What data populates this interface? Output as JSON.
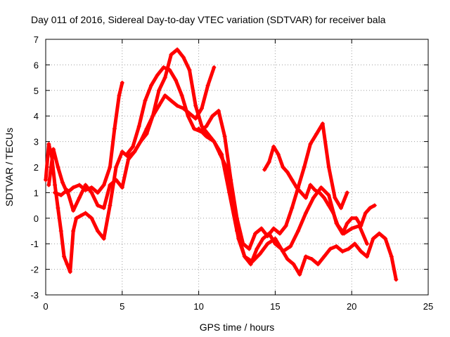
{
  "chart_data": {
    "type": "scatter",
    "title": "Day 011 of 2016, Sidereal Day-to-day VTEC variation (SDTVAR) for receiver bala",
    "xlabel": "GPS time / hours",
    "ylabel": "SDTVAR / TECUs",
    "xlim": [
      0,
      25
    ],
    "ylim": [
      -3,
      7
    ],
    "xticks": [
      0,
      5,
      10,
      15,
      20,
      25
    ],
    "yticks": [
      -3,
      -2,
      -1,
      0,
      1,
      2,
      3,
      4,
      5,
      6,
      7
    ],
    "grid": true,
    "marker": "+",
    "series_color": "#ff0000",
    "series": [
      {
        "x": [
          0.0,
          0.2,
          0.4,
          0.6,
          0.8,
          1.0,
          1.2,
          1.4,
          1.6,
          1.8,
          2.0,
          2.3,
          2.6,
          3.0,
          3.4,
          3.8,
          4.2,
          4.6,
          5.0,
          5.4,
          5.8,
          6.2,
          6.6,
          7.0,
          7.4,
          7.8,
          8.2,
          8.6,
          9.0,
          9.4,
          9.8,
          10.2,
          10.6,
          11.0,
          11.4,
          11.8,
          12.2,
          12.6,
          13.0,
          13.4,
          13.8,
          14.2,
          14.6,
          15.0,
          15.4,
          15.8,
          16.2,
          16.6,
          17.0,
          17.4,
          17.8,
          18.2,
          18.6,
          19.0,
          19.4,
          19.8,
          20.2,
          20.6,
          21.0,
          21.4,
          21.8,
          22.2,
          22.6,
          22.9
        ],
        "y": [
          1.5,
          2.9,
          2.4,
          1.3,
          0.4,
          -0.5,
          -1.5,
          -1.8,
          -2.1,
          -0.5,
          0.0,
          0.1,
          0.2,
          0.0,
          -0.5,
          -0.8,
          0.5,
          2.0,
          2.6,
          2.4,
          2.6,
          3.0,
          3.3,
          4.0,
          5.0,
          5.5,
          6.4,
          6.6,
          6.3,
          5.8,
          4.4,
          3.6,
          3.3,
          3.0,
          2.5,
          2.0,
          0.5,
          -0.8,
          -1.5,
          -1.8,
          -1.2,
          -0.8,
          -0.6,
          -1.0,
          -1.2,
          -1.6,
          -1.8,
          -2.2,
          -1.5,
          -1.6,
          -1.8,
          -1.5,
          -1.2,
          -1.1,
          -1.3,
          -1.2,
          -1.0,
          -1.3,
          -1.5,
          -0.8,
          -0.6,
          -0.8,
          -1.5,
          -2.4
        ]
      },
      {
        "x": [
          0.2,
          0.5,
          0.8,
          1.1,
          1.4,
          1.8,
          2.2,
          2.6,
          3.0,
          3.4,
          3.8,
          4.2,
          4.5,
          4.8,
          5.0
        ],
        "y": [
          1.3,
          2.7,
          2.0,
          1.4,
          1.0,
          1.2,
          1.3,
          1.1,
          1.2,
          1.0,
          1.3,
          2.0,
          3.5,
          4.8,
          5.3
        ]
      },
      {
        "x": [
          0.6,
          1.0,
          1.4,
          1.8,
          2.2,
          2.6,
          3.0,
          3.4,
          3.8,
          4.2,
          4.6,
          5.0,
          5.4,
          5.8,
          6.2,
          6.6,
          7.0,
          7.4,
          7.8,
          8.2,
          8.6,
          9.0,
          9.4,
          9.8,
          10.2,
          10.6,
          11.0
        ],
        "y": [
          1.0,
          0.9,
          1.1,
          0.3,
          0.8,
          1.3,
          1.0,
          0.5,
          0.4,
          1.3,
          1.5,
          1.2,
          2.3,
          2.6,
          3.0,
          3.5,
          4.0,
          4.4,
          4.8,
          4.6,
          4.4,
          4.3,
          4.1,
          3.9,
          4.3,
          5.2,
          5.9
        ]
      },
      {
        "x": [
          5.3,
          5.7,
          6.1,
          6.5,
          6.9,
          7.3,
          7.7,
          8.1,
          8.5,
          8.9,
          9.3,
          9.7,
          10.1,
          10.5,
          10.9,
          11.3,
          11.7,
          12.1,
          12.5,
          12.9,
          13.3,
          13.7,
          14.1,
          14.5,
          14.9,
          15.3,
          15.7,
          16.1,
          16.5,
          16.9,
          17.3,
          17.7,
          18.1,
          18.5,
          18.9,
          19.3,
          19.7
        ],
        "y": [
          2.5,
          2.8,
          3.6,
          4.6,
          5.2,
          5.6,
          5.9,
          5.8,
          5.4,
          4.8,
          4.0,
          3.5,
          3.4,
          3.6,
          4.0,
          4.2,
          3.2,
          1.5,
          0.0,
          -1.0,
          -1.2,
          -0.6,
          -0.4,
          -0.7,
          -0.4,
          -0.6,
          -0.3,
          0.4,
          1.2,
          2.0,
          2.9,
          3.3,
          3.7,
          2.0,
          0.8,
          0.4,
          1.0
        ]
      },
      {
        "x": [
          14.3,
          14.6,
          14.9,
          15.2,
          15.5,
          15.8,
          16.1,
          16.4,
          16.7,
          17.0,
          17.3,
          17.6,
          17.9,
          18.2,
          18.5,
          18.8,
          19.1,
          19.4,
          19.7,
          20.0,
          20.3,
          20.6,
          20.9,
          21.2,
          21.5
        ],
        "y": [
          1.9,
          2.2,
          2.8,
          2.5,
          2.0,
          1.8,
          1.5,
          1.2,
          1.0,
          0.8,
          1.3,
          1.1,
          1.0,
          0.8,
          0.5,
          0.2,
          -0.3,
          -0.6,
          -0.2,
          0.0,
          0.0,
          -0.3,
          0.2,
          0.4,
          0.5
        ]
      },
      {
        "x": [
          10.0,
          10.5,
          11.0,
          11.5,
          12.0,
          12.5,
          13.0,
          13.5,
          14.0,
          14.5,
          15.0,
          15.5,
          16.0,
          16.5,
          17.0,
          17.5,
          18.0,
          18.5,
          19.0,
          19.5,
          20.0,
          20.5,
          21.0
        ],
        "y": [
          3.5,
          3.2,
          3.0,
          2.5,
          1.0,
          -0.5,
          -1.5,
          -1.7,
          -1.4,
          -1.0,
          -0.8,
          -1.3,
          -1.1,
          -0.5,
          0.2,
          0.8,
          1.2,
          0.9,
          -0.2,
          -0.6,
          -0.4,
          -0.3,
          -1.0
        ]
      }
    ]
  }
}
